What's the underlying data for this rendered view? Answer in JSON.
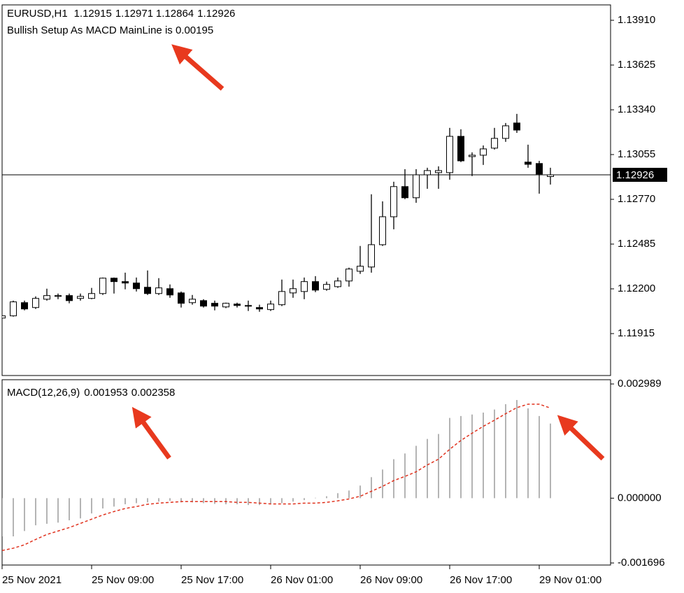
{
  "chart_data": [
    {
      "type": "candlestick",
      "symbol": "EURUSD,H1",
      "comment": "Bullish Setup As MACD MainLine is 0.00195",
      "categories": [
        "25 Nov 2021",
        null,
        null,
        null,
        null,
        null,
        null,
        null,
        "25 Nov 09:00",
        null,
        null,
        null,
        null,
        null,
        null,
        null,
        "25 Nov 17:00",
        null,
        null,
        null,
        null,
        null,
        null,
        null,
        "26 Nov 01:00",
        null,
        null,
        null,
        null,
        null,
        null,
        null,
        "26 Nov 09:00",
        null,
        null,
        null,
        null,
        null,
        null,
        null,
        "26 Nov 17:00",
        null,
        null,
        null,
        null,
        null,
        null,
        null,
        "29 Nov 01:00",
        null
      ],
      "open": [
        1.12014,
        1.12028,
        1.12112,
        1.12081,
        1.12134,
        1.12152,
        1.12157,
        1.12139,
        1.12139,
        1.1217,
        1.12268,
        1.12246,
        1.12237,
        1.1221,
        1.1217,
        1.12201,
        1.12174,
        1.12112,
        1.12125,
        1.12108,
        1.12085,
        1.12103,
        1.12094,
        1.12081,
        1.12068,
        1.12099,
        1.12174,
        1.12183,
        1.12246,
        1.12197,
        1.12214,
        1.1225,
        1.12312,
        1.12339,
        1.12481,
        1.12659,
        1.12851,
        1.1278,
        1.12926,
        1.1294,
        1.1294,
        1.13171,
        1.13042,
        1.13051,
        1.13096,
        1.13158,
        1.13256,
        1.13007,
        1.12998,
        1.12915
      ],
      "high": [
        1.12032,
        1.12125,
        1.12125,
        1.12152,
        1.12201,
        1.1217,
        1.1217,
        1.1217,
        1.12206,
        1.12272,
        1.12272,
        1.12303,
        1.12272,
        1.12317,
        1.12268,
        1.12228,
        1.12183,
        1.12161,
        1.12134,
        1.12125,
        1.12112,
        1.12112,
        1.12125,
        1.12099,
        1.12125,
        1.12259,
        1.12259,
        1.12272,
        1.12281,
        1.12246,
        1.12272,
        1.12335,
        1.12473,
        1.12802,
        1.12757,
        1.12882,
        1.12962,
        1.12962,
        1.12971,
        1.1298,
        1.13225,
        1.13216,
        1.13069,
        1.13113,
        1.13225,
        1.13256,
        1.13314,
        1.13118,
        1.13015,
        1.12971
      ],
      "low": [
        1.1201,
        1.12023,
        1.12063,
        1.12072,
        1.12125,
        1.12134,
        1.12108,
        1.12125,
        1.12134,
        1.12161,
        1.1217,
        1.12197,
        1.12183,
        1.12161,
        1.12161,
        1.12143,
        1.12081,
        1.12099,
        1.12081,
        1.12063,
        1.12077,
        1.12081,
        1.12059,
        1.12054,
        1.12059,
        1.1209,
        1.12143,
        1.12134,
        1.12179,
        1.12188,
        1.12206,
        1.12214,
        1.12295,
        1.12303,
        1.12473,
        1.12579,
        1.12771,
        1.12748,
        1.12837,
        1.12837,
        1.12895,
        1.13007,
        1.12918,
        1.12989,
        1.13087,
        1.13136,
        1.13193,
        1.12971,
        1.12806,
        1.12864
      ],
      "close": [
        1.12028,
        1.12117,
        1.12072,
        1.12139,
        1.12157,
        1.12157,
        1.12125,
        1.12152,
        1.1217,
        1.12268,
        1.12246,
        1.12237,
        1.12201,
        1.1217,
        1.12206,
        1.12161,
        1.12108,
        1.12134,
        1.1209,
        1.1209,
        1.12108,
        1.12094,
        1.1209,
        1.12072,
        1.12103,
        1.12183,
        1.12201,
        1.12246,
        1.12192,
        1.12228,
        1.1225,
        1.12326,
        1.12344,
        1.12481,
        1.12659,
        1.12851,
        1.1278,
        1.12926,
        1.12953,
        1.12953,
        1.13171,
        1.13015,
        1.13051,
        1.13091,
        1.13158,
        1.13238,
        1.13211,
        1.12993,
        1.12931,
        1.12926
      ],
      "up_color": "#ffffff",
      "down_color": "#000000",
      "line_color": "#000000",
      "ylim": [
        1.11648,
        1.14008
      ],
      "yticks": [
        {
          "value": 1.1391,
          "label": "1.13910"
        },
        1.13625,
        {
          "value": 1.1334,
          "label": "1.13340"
        },
        1.13055,
        {
          "value": 1.1277,
          "label": "1.12770"
        },
        1.12485,
        {
          "value": 1.122,
          "label": "1.12200"
        },
        1.11915
      ]
    },
    {
      "type": "macd",
      "title": "MACD(12,26,9)",
      "values": [
        -0.001,
        -0.001,
        -0.00086,
        -0.00071,
        -0.00067,
        -0.00064,
        -0.00058,
        -0.00053,
        -0.0004,
        -0.00027,
        -0.00022,
        -0.00016,
        -0.00013,
        -0.00011,
        -9e-05,
        -7e-05,
        -0.00011,
        -0.00011,
        -0.00013,
        -0.00015,
        -0.00016,
        -0.00016,
        -0.00018,
        -0.00018,
        -0.00016,
        -0.00013,
        -9e-05,
        -5e-05,
        1e-05,
        5e-05,
        0.00013,
        0.0002,
        0.00033,
        0.00055,
        0.00075,
        0.00102,
        0.00117,
        0.00137,
        0.00155,
        0.00168,
        0.0021,
        0.00215,
        0.00219,
        0.00224,
        0.00232,
        0.00246,
        0.00257,
        0.00235,
        0.00215,
        0.001953
      ],
      "signal": [
        -0.00137,
        -0.00131,
        -0.00122,
        -0.00108,
        -0.00095,
        -0.00086,
        -0.00077,
        -0.00066,
        -0.00055,
        -0.00044,
        -0.00035,
        -0.00027,
        -0.00022,
        -0.00016,
        -0.00013,
        -0.00011,
        -9e-05,
        -9e-05,
        -9e-05,
        -9e-05,
        -9e-05,
        -0.00011,
        -0.00011,
        -0.00013,
        -0.00015,
        -0.00015,
        -0.00015,
        -0.00013,
        -0.00013,
        -0.00011,
        -7e-05,
        -2e-05,
        5e-05,
        0.00018,
        0.00031,
        0.00046,
        0.00057,
        0.00069,
        0.00087,
        0.00102,
        0.00128,
        0.00151,
        0.0017,
        0.00188,
        0.00204,
        0.00221,
        0.00237,
        0.00246,
        0.00246,
        0.002358
      ],
      "color": "#b4b4b4",
      "signal_color": "#e0321e",
      "ylim": [
        -0.00175,
        0.0031
      ],
      "yticks": [
        0.002989,
        {
          "value": 0,
          "label": "0.000000"
        },
        -0.001696
      ]
    }
  ]
}
